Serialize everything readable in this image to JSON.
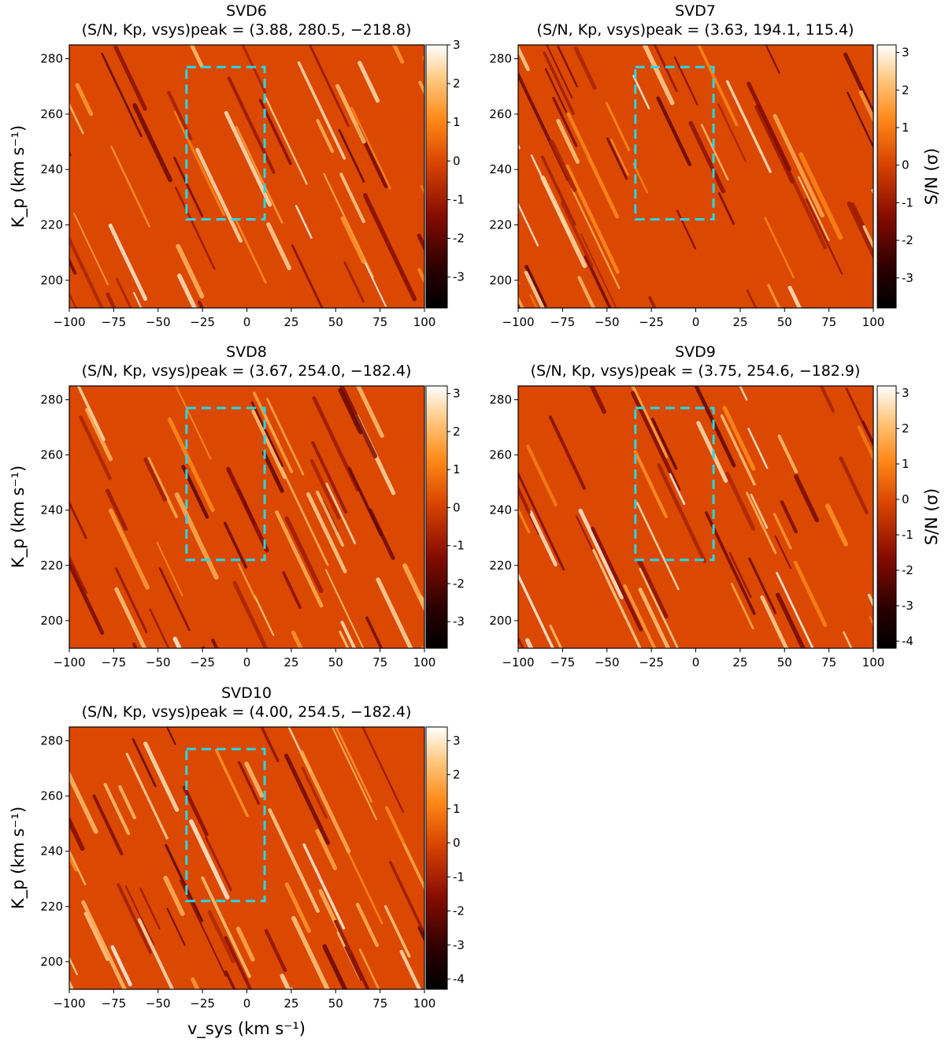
{
  "figure": {
    "xlabel": "v_sys (km s⁻¹)",
    "ylabel": "K_p (km s⁻¹)",
    "colorbar_label": "S/N (σ)",
    "colormap": "gist_heat",
    "box_color": "#26d9e3"
  },
  "chart_data": [
    {
      "type": "heatmap",
      "title": "SVD6",
      "subtitle": "(S/N, Kp, vsys)peak = (3.88, 280.5, −218.8)",
      "peak": {
        "snr": 3.88,
        "kp": 280.5,
        "vsys": -218.8
      },
      "xlim": [
        -100,
        100
      ],
      "ylim": [
        190,
        285
      ],
      "xticks": [
        -100,
        -75,
        -50,
        -25,
        0,
        25,
        50,
        75,
        100
      ],
      "yticks": [
        200,
        220,
        240,
        260,
        280
      ],
      "colorbar": {
        "range": [
          -3.8,
          3.0
        ],
        "ticks": [
          -3,
          -2,
          -1,
          0,
          1,
          2,
          3
        ]
      },
      "box": {
        "vsys": [
          -34,
          10
        ],
        "kp": [
          222,
          277
        ]
      },
      "seed": 6
    },
    {
      "type": "heatmap",
      "title": "SVD7",
      "subtitle": "(S/N, Kp, vsys)peak = (3.63, 194.1, 115.4)",
      "peak": {
        "snr": 3.63,
        "kp": 194.1,
        "vsys": 115.4
      },
      "xlim": [
        -100,
        100
      ],
      "ylim": [
        190,
        285
      ],
      "xticks": [
        -100,
        -75,
        -50,
        -25,
        0,
        25,
        50,
        75,
        100
      ],
      "yticks": [
        200,
        220,
        240,
        260,
        280
      ],
      "colorbar": {
        "range": [
          -3.8,
          3.2
        ],
        "ticks": [
          -3,
          -2,
          -1,
          0,
          1,
          2,
          3
        ],
        "label": "S/N (σ)"
      },
      "box": {
        "vsys": [
          -34,
          10
        ],
        "kp": [
          222,
          277
        ]
      },
      "seed": 7
    },
    {
      "type": "heatmap",
      "title": "SVD8",
      "subtitle": "(S/N, Kp, vsys)peak = (3.67, 254.0, −182.4)",
      "peak": {
        "snr": 3.67,
        "kp": 254.0,
        "vsys": -182.4
      },
      "xlim": [
        -100,
        100
      ],
      "ylim": [
        190,
        285
      ],
      "xticks": [
        -100,
        -75,
        -50,
        -25,
        0,
        25,
        50,
        75,
        100
      ],
      "yticks": [
        200,
        220,
        240,
        260,
        280
      ],
      "colorbar": {
        "range": [
          -3.7,
          3.2
        ],
        "ticks": [
          -3,
          -2,
          -1,
          0,
          1,
          2,
          3
        ]
      },
      "box": {
        "vsys": [
          -34,
          10
        ],
        "kp": [
          222,
          277
        ]
      },
      "seed": 8
    },
    {
      "type": "heatmap",
      "title": "SVD9",
      "subtitle": "(S/N, Kp, vsys)peak = (3.75, 254.6, −182.9)",
      "peak": {
        "snr": 3.75,
        "kp": 254.6,
        "vsys": -182.9
      },
      "xlim": [
        -100,
        100
      ],
      "ylim": [
        190,
        285
      ],
      "xticks": [
        -100,
        -75,
        -50,
        -25,
        0,
        25,
        50,
        75,
        100
      ],
      "yticks": [
        200,
        220,
        240,
        260,
        280
      ],
      "colorbar": {
        "range": [
          -4.2,
          3.2
        ],
        "ticks": [
          -4,
          -3,
          -2,
          -1,
          0,
          1,
          2,
          3
        ],
        "label": "S/N (σ)"
      },
      "box": {
        "vsys": [
          -34,
          10
        ],
        "kp": [
          222,
          277
        ]
      },
      "seed": 9
    },
    {
      "type": "heatmap",
      "title": "SVD10",
      "subtitle": "(S/N, Kp, vsys)peak = (4.00, 254.5, −182.4)",
      "peak": {
        "snr": 4.0,
        "kp": 254.5,
        "vsys": -182.4
      },
      "xlim": [
        -100,
        100
      ],
      "ylim": [
        190,
        285
      ],
      "xticks": [
        -100,
        -75,
        -50,
        -25,
        0,
        25,
        50,
        75,
        100
      ],
      "yticks": [
        200,
        220,
        240,
        260,
        280
      ],
      "colorbar": {
        "range": [
          -4.3,
          3.4
        ],
        "ticks": [
          -4,
          -3,
          -2,
          -1,
          0,
          1,
          2,
          3
        ]
      },
      "box": {
        "vsys": [
          -34,
          10
        ],
        "kp": [
          222,
          277
        ]
      },
      "seed": 10
    }
  ]
}
